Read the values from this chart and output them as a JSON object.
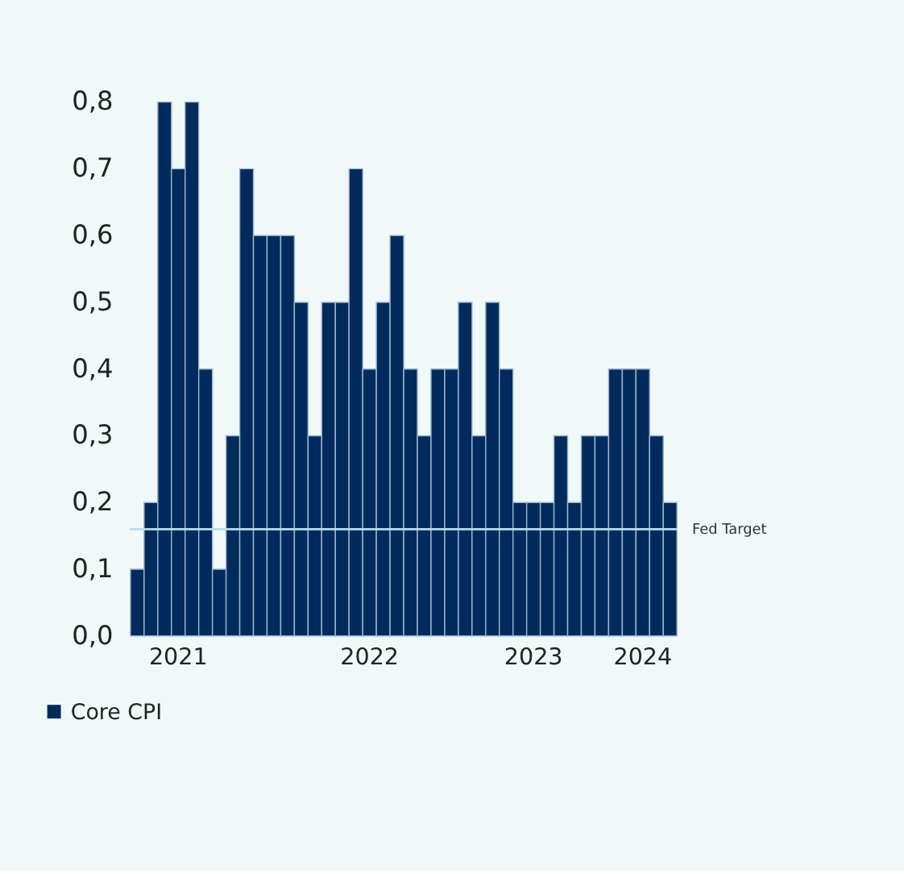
{
  "chart_data": {
    "type": "bar",
    "categories": [
      null,
      null,
      null,
      "2021",
      null,
      null,
      null,
      null,
      null,
      null,
      null,
      null,
      null,
      null,
      null,
      null,
      null,
      "2022",
      null,
      null,
      null,
      null,
      null,
      null,
      null,
      null,
      null,
      null,
      null,
      "2023",
      null,
      null,
      null,
      null,
      null,
      null,
      null,
      "2024",
      null,
      null
    ],
    "series": [
      {
        "name": "Core CPI",
        "color": "#002b5c",
        "values": [
          0.1,
          0.2,
          0.8,
          0.7,
          0.8,
          0.4,
          0.1,
          0.3,
          0.7,
          0.6,
          0.6,
          0.6,
          0.5,
          0.3,
          0.5,
          0.5,
          0.7,
          0.4,
          0.5,
          0.6,
          0.4,
          0.3,
          0.4,
          0.4,
          0.5,
          0.3,
          0.5,
          0.4,
          0.2,
          0.2,
          0.2,
          0.3,
          0.2,
          0.3,
          0.3,
          0.4,
          0.4,
          0.4,
          0.3,
          0.2
        ]
      }
    ],
    "ylim": [
      0,
      0.8
    ],
    "yticks": [
      {
        "value": 0,
        "label": "0,0"
      },
      {
        "value": 0.1,
        "label": "0,1"
      },
      {
        "value": 0.2,
        "label": "0,2"
      },
      {
        "value": 0.3,
        "label": "0,3"
      },
      {
        "value": 0.4,
        "label": "0,4"
      },
      {
        "value": 0.5,
        "label": "0,5"
      },
      {
        "value": 0.6,
        "label": "0,6"
      },
      {
        "value": 0.7,
        "label": "0,7"
      },
      {
        "value": 0.8,
        "label": "0,8"
      }
    ],
    "ref_lines": [
      {
        "axis": "y",
        "value": 0.16,
        "label": "Fed Target",
        "color": "#b8dcea"
      }
    ],
    "grid": false,
    "legend": "bottom left"
  }
}
